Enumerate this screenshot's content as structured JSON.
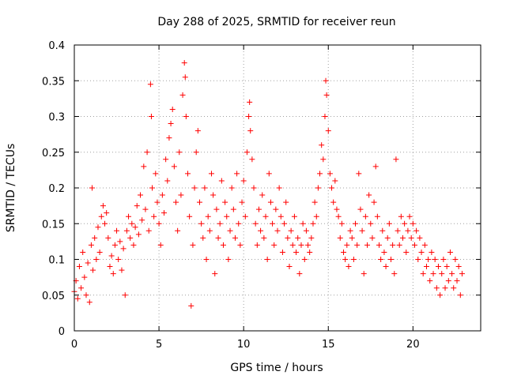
{
  "chart_data": {
    "type": "scatter",
    "title": "Day 288 of 2025, SRMTID for receiver reun",
    "xlabel": "GPS time / hours",
    "ylabel": "SRMTID / TECUs",
    "xlim": [
      0,
      24
    ],
    "ylim": [
      0,
      0.4
    ],
    "grid": true,
    "marker": "+",
    "marker_color": "#ff0000",
    "x_ticks": [
      0,
      5,
      10,
      15,
      20
    ],
    "x_tick_labels": [
      "0",
      "5",
      "10",
      "15",
      "20"
    ],
    "y_ticks": [
      0,
      0.05,
      0.1,
      0.15,
      0.2,
      0.25,
      0.3,
      0.35,
      0.4
    ],
    "y_tick_labels": [
      "0",
      "0.05",
      "0.1",
      "0.15",
      "0.2",
      "0.25",
      "0.3",
      "0.35",
      "0.4"
    ],
    "series": [
      {
        "name": "SRMTID",
        "color": "#ff0000",
        "points": [
          [
            0.0,
            0.055
          ],
          [
            0.1,
            0.07
          ],
          [
            0.2,
            0.045
          ],
          [
            0.3,
            0.09
          ],
          [
            0.4,
            0.06
          ],
          [
            0.5,
            0.11
          ],
          [
            0.6,
            0.075
          ],
          [
            0.7,
            0.05
          ],
          [
            0.8,
            0.095
          ],
          [
            0.9,
            0.04
          ],
          [
            1.0,
            0.12
          ],
          [
            1.05,
            0.2
          ],
          [
            1.1,
            0.085
          ],
          [
            1.2,
            0.13
          ],
          [
            1.3,
            0.1
          ],
          [
            1.4,
            0.145
          ],
          [
            1.5,
            0.11
          ],
          [
            1.6,
            0.16
          ],
          [
            1.7,
            0.175
          ],
          [
            1.8,
            0.15
          ],
          [
            1.9,
            0.165
          ],
          [
            2.0,
            0.13
          ],
          [
            2.1,
            0.09
          ],
          [
            2.2,
            0.105
          ],
          [
            2.3,
            0.08
          ],
          [
            2.4,
            0.12
          ],
          [
            2.5,
            0.14
          ],
          [
            2.6,
            0.1
          ],
          [
            2.7,
            0.125
          ],
          [
            2.8,
            0.085
          ],
          [
            2.9,
            0.115
          ],
          [
            3.0,
            0.05
          ],
          [
            3.1,
            0.14
          ],
          [
            3.2,
            0.16
          ],
          [
            3.3,
            0.13
          ],
          [
            3.4,
            0.15
          ],
          [
            3.5,
            0.12
          ],
          [
            3.6,
            0.145
          ],
          [
            3.7,
            0.175
          ],
          [
            3.8,
            0.135
          ],
          [
            3.9,
            0.19
          ],
          [
            4.0,
            0.155
          ],
          [
            4.1,
            0.23
          ],
          [
            4.2,
            0.17
          ],
          [
            4.3,
            0.25
          ],
          [
            4.4,
            0.14
          ],
          [
            4.5,
            0.345
          ],
          [
            4.55,
            0.3
          ],
          [
            4.6,
            0.2
          ],
          [
            4.7,
            0.16
          ],
          [
            4.8,
            0.22
          ],
          [
            4.9,
            0.18
          ],
          [
            5.0,
            0.15
          ],
          [
            5.1,
            0.12
          ],
          [
            5.2,
            0.19
          ],
          [
            5.3,
            0.165
          ],
          [
            5.4,
            0.24
          ],
          [
            5.5,
            0.21
          ],
          [
            5.6,
            0.27
          ],
          [
            5.7,
            0.29
          ],
          [
            5.8,
            0.31
          ],
          [
            5.9,
            0.23
          ],
          [
            6.0,
            0.18
          ],
          [
            6.1,
            0.14
          ],
          [
            6.2,
            0.25
          ],
          [
            6.3,
            0.19
          ],
          [
            6.4,
            0.33
          ],
          [
            6.5,
            0.375
          ],
          [
            6.55,
            0.355
          ],
          [
            6.6,
            0.3
          ],
          [
            6.7,
            0.22
          ],
          [
            6.8,
            0.16
          ],
          [
            6.9,
            0.035
          ],
          [
            7.0,
            0.12
          ],
          [
            7.1,
            0.2
          ],
          [
            7.2,
            0.25
          ],
          [
            7.3,
            0.28
          ],
          [
            7.4,
            0.18
          ],
          [
            7.5,
            0.15
          ],
          [
            7.6,
            0.13
          ],
          [
            7.7,
            0.2
          ],
          [
            7.8,
            0.1
          ],
          [
            7.9,
            0.16
          ],
          [
            8.0,
            0.14
          ],
          [
            8.1,
            0.22
          ],
          [
            8.2,
            0.19
          ],
          [
            8.3,
            0.08
          ],
          [
            8.4,
            0.17
          ],
          [
            8.5,
            0.13
          ],
          [
            8.6,
            0.15
          ],
          [
            8.7,
            0.21
          ],
          [
            8.8,
            0.12
          ],
          [
            8.9,
            0.18
          ],
          [
            9.0,
            0.16
          ],
          [
            9.1,
            0.1
          ],
          [
            9.2,
            0.14
          ],
          [
            9.3,
            0.2
          ],
          [
            9.4,
            0.17
          ],
          [
            9.5,
            0.13
          ],
          [
            9.6,
            0.22
          ],
          [
            9.7,
            0.15
          ],
          [
            9.8,
            0.12
          ],
          [
            9.9,
            0.18
          ],
          [
            10.0,
            0.21
          ],
          [
            10.1,
            0.16
          ],
          [
            10.2,
            0.25
          ],
          [
            10.3,
            0.3
          ],
          [
            10.35,
            0.32
          ],
          [
            10.4,
            0.28
          ],
          [
            10.5,
            0.24
          ],
          [
            10.6,
            0.2
          ],
          [
            10.7,
            0.15
          ],
          [
            10.8,
            0.12
          ],
          [
            10.9,
            0.17
          ],
          [
            11.0,
            0.14
          ],
          [
            11.1,
            0.19
          ],
          [
            11.2,
            0.13
          ],
          [
            11.3,
            0.16
          ],
          [
            11.4,
            0.1
          ],
          [
            11.5,
            0.22
          ],
          [
            11.6,
            0.18
          ],
          [
            11.7,
            0.15
          ],
          [
            11.8,
            0.12
          ],
          [
            11.9,
            0.17
          ],
          [
            12.0,
            0.14
          ],
          [
            12.1,
            0.2
          ],
          [
            12.2,
            0.16
          ],
          [
            12.3,
            0.11
          ],
          [
            12.4,
            0.15
          ],
          [
            12.5,
            0.18
          ],
          [
            12.6,
            0.13
          ],
          [
            12.7,
            0.09
          ],
          [
            12.8,
            0.14
          ],
          [
            12.9,
            0.12
          ],
          [
            13.0,
            0.16
          ],
          [
            13.1,
            0.11
          ],
          [
            13.2,
            0.13
          ],
          [
            13.3,
            0.08
          ],
          [
            13.4,
            0.12
          ],
          [
            13.5,
            0.15
          ],
          [
            13.6,
            0.1
          ],
          [
            13.7,
            0.14
          ],
          [
            13.8,
            0.12
          ],
          [
            13.9,
            0.11
          ],
          [
            14.0,
            0.13
          ],
          [
            14.1,
            0.15
          ],
          [
            14.2,
            0.18
          ],
          [
            14.3,
            0.16
          ],
          [
            14.4,
            0.2
          ],
          [
            14.5,
            0.22
          ],
          [
            14.6,
            0.26
          ],
          [
            14.7,
            0.24
          ],
          [
            14.8,
            0.3
          ],
          [
            14.85,
            0.35
          ],
          [
            14.9,
            0.33
          ],
          [
            15.0,
            0.28
          ],
          [
            15.1,
            0.22
          ],
          [
            15.2,
            0.2
          ],
          [
            15.3,
            0.18
          ],
          [
            15.4,
            0.21
          ],
          [
            15.5,
            0.17
          ],
          [
            15.6,
            0.16
          ],
          [
            15.7,
            0.13
          ],
          [
            15.8,
            0.15
          ],
          [
            15.9,
            0.11
          ],
          [
            16.0,
            0.1
          ],
          [
            16.1,
            0.12
          ],
          [
            16.2,
            0.09
          ],
          [
            16.3,
            0.14
          ],
          [
            16.4,
            0.13
          ],
          [
            16.5,
            0.1
          ],
          [
            16.6,
            0.15
          ],
          [
            16.7,
            0.12
          ],
          [
            16.8,
            0.22
          ],
          [
            16.9,
            0.17
          ],
          [
            17.0,
            0.14
          ],
          [
            17.1,
            0.08
          ],
          [
            17.2,
            0.16
          ],
          [
            17.3,
            0.12
          ],
          [
            17.4,
            0.19
          ],
          [
            17.5,
            0.15
          ],
          [
            17.6,
            0.13
          ],
          [
            17.7,
            0.18
          ],
          [
            17.8,
            0.23
          ],
          [
            17.9,
            0.16
          ],
          [
            18.0,
            0.12
          ],
          [
            18.1,
            0.1
          ],
          [
            18.2,
            0.14
          ],
          [
            18.3,
            0.11
          ],
          [
            18.4,
            0.09
          ],
          [
            18.5,
            0.13
          ],
          [
            18.6,
            0.15
          ],
          [
            18.7,
            0.1
          ],
          [
            18.8,
            0.12
          ],
          [
            18.9,
            0.08
          ],
          [
            19.0,
            0.24
          ],
          [
            19.1,
            0.14
          ],
          [
            19.2,
            0.12
          ],
          [
            19.3,
            0.16
          ],
          [
            19.4,
            0.13
          ],
          [
            19.5,
            0.15
          ],
          [
            19.6,
            0.11
          ],
          [
            19.7,
            0.14
          ],
          [
            19.8,
            0.16
          ],
          [
            19.9,
            0.13
          ],
          [
            20.0,
            0.15
          ],
          [
            20.1,
            0.12
          ],
          [
            20.2,
            0.14
          ],
          [
            20.3,
            0.1
          ],
          [
            20.4,
            0.13
          ],
          [
            20.5,
            0.11
          ],
          [
            20.6,
            0.08
          ],
          [
            20.7,
            0.12
          ],
          [
            20.8,
            0.09
          ],
          [
            20.9,
            0.1
          ],
          [
            21.0,
            0.07
          ],
          [
            21.1,
            0.11
          ],
          [
            21.2,
            0.08
          ],
          [
            21.3,
            0.1
          ],
          [
            21.4,
            0.06
          ],
          [
            21.5,
            0.09
          ],
          [
            21.6,
            0.05
          ],
          [
            21.7,
            0.08
          ],
          [
            21.8,
            0.1
          ],
          [
            21.9,
            0.06
          ],
          [
            22.0,
            0.09
          ],
          [
            22.1,
            0.07
          ],
          [
            22.2,
            0.11
          ],
          [
            22.3,
            0.08
          ],
          [
            22.4,
            0.06
          ],
          [
            22.5,
            0.1
          ],
          [
            22.6,
            0.07
          ],
          [
            22.7,
            0.09
          ],
          [
            22.8,
            0.05
          ],
          [
            22.9,
            0.08
          ]
        ]
      }
    ]
  }
}
